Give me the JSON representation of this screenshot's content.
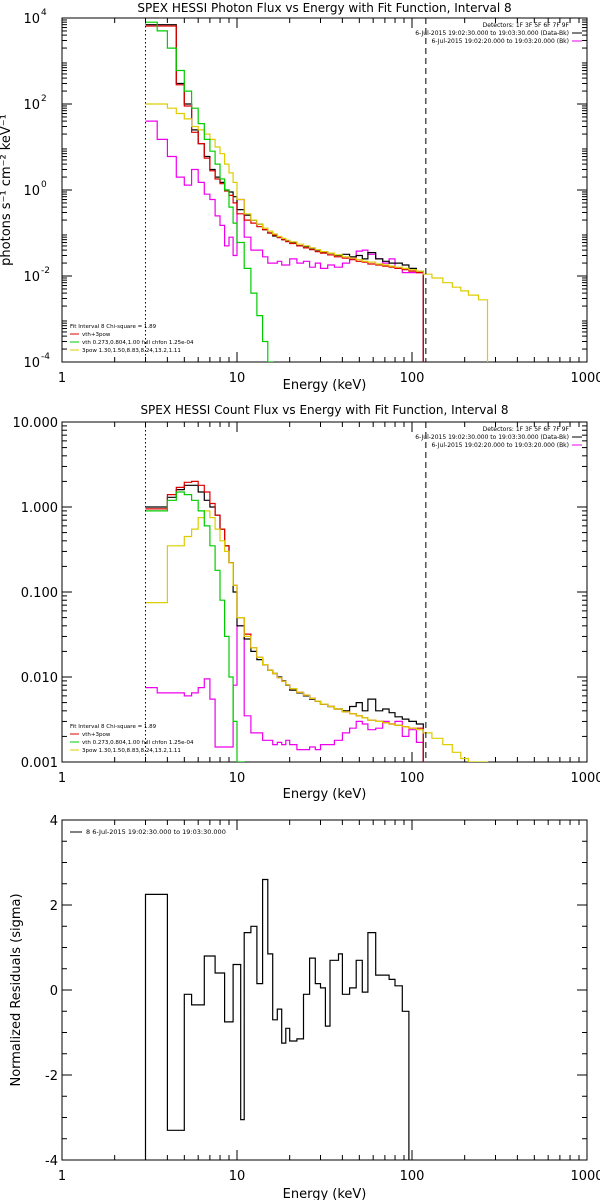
{
  "chart_data": [
    {
      "type": "line",
      "title": "SPEX HESSI Photon Flux vs Energy with Fit Function, Interval 8",
      "xlabel": "Energy (keV)",
      "ylabel": "photons s⁻¹ cm⁻² keV⁻¹",
      "xscale": "log",
      "yscale": "log",
      "xlim": [
        1,
        1000
      ],
      "ylim": [
        0.0001,
        10000
      ],
      "xticks": [
        {
          "v": 1,
          "label": "1"
        },
        {
          "v": 10,
          "label": "10"
        },
        {
          "v": 100,
          "label": "100"
        },
        {
          "v": 1000,
          "label": "1000"
        }
      ],
      "yticks": [
        {
          "v": 0.0001,
          "label": "10",
          "exp": "-4"
        },
        {
          "v": 0.01,
          "label": "10",
          "exp": "-2"
        },
        {
          "v": 1,
          "label": "10",
          "exp": "0"
        },
        {
          "v": 100,
          "label": "10",
          "exp": "2"
        },
        {
          "v": 10000,
          "label": "10",
          "exp": "4"
        }
      ],
      "grid": false,
      "legend_top": {
        "lines": [
          "Detectors: 1F 3F 5F 6F 7F 9F",
          "6-Jul-2015 19:02:30.000 to 19:03:30.000 (Data-Bk)",
          "6-Jul-2015 19:02:20.000 to 19:03:20.000 (Bk)"
        ],
        "colors": [
          "none",
          "#000000",
          "#ee00ee"
        ]
      },
      "legend_bottom": {
        "lines": [
          "Fit Interval 8   Chi-square = 1.89",
          "vth+3pow",
          "vth 0.273,0.804,1.00  full chfon 1.25e-04",
          "3pow 1.30,1.50,8.83,8.24,13.2,1.11"
        ],
        "colors": [
          "none",
          "#dd0000",
          "#00cc00",
          "#ddcc00"
        ]
      },
      "vlines": [
        {
          "x": 3.0,
          "style": "dotted",
          "color": "#000000"
        },
        {
          "x": 120,
          "style": "dashed",
          "color": "#000000"
        }
      ],
      "edges": [
        3.0,
        3.5,
        4.0,
        4.5,
        5.0,
        5.5,
        6.0,
        6.5,
        7.0,
        7.5,
        8.0,
        8.5,
        9.0,
        9.5,
        10.0,
        11.0,
        12.0,
        13.0,
        14.0,
        15.0,
        16.0,
        17.0,
        18.0,
        19.0,
        20.0,
        22.0,
        24.0,
        26.0,
        28.0,
        30.0,
        33.0,
        36.0,
        40.0,
        44.0,
        48.0,
        52.0,
        56.0,
        62.0,
        68.0,
        74.0,
        80.0,
        88.0,
        96.0,
        106.0,
        116.0,
        130.0,
        150.0,
        170.0,
        190.0,
        210.0,
        240.0,
        270.0
      ],
      "series": [
        {
          "color": "#ee00ee",
          "values": [
            40,
            15,
            6,
            2,
            1.3,
            3,
            1.5,
            0.8,
            0.6,
            0.25,
            0.15,
            0.05,
            0.08,
            0.03,
            0.6,
            0.08,
            0.04,
            0.04,
            0.028,
            0.02,
            0.02,
            0.022,
            0.018,
            0.018,
            0.025,
            0.02,
            0.022,
            0.016,
            0.02,
            0.015,
            0.018,
            0.016,
            0.02,
            0.025,
            0.038,
            0.04,
            0.032,
            0.025,
            0.02,
            0.025,
            0.015,
            0.012,
            0.012,
            0.012
          ]
        },
        {
          "color": "#000000",
          "values": [
            7000,
            7000,
            7000,
            300,
            100,
            25,
            12,
            6,
            3,
            2,
            1.5,
            1,
            0.9,
            0.7,
            0.35,
            0.26,
            0.2,
            0.16,
            0.12,
            0.1,
            0.085,
            0.08,
            0.07,
            0.065,
            0.06,
            0.05,
            0.048,
            0.042,
            0.04,
            0.036,
            0.034,
            0.03,
            0.032,
            0.028,
            0.03,
            0.025,
            0.035,
            0.025,
            0.022,
            0.02,
            0.02,
            0.018,
            0.015,
            0.013
          ]
        },
        {
          "color": "#dd0000",
          "values": [
            6500,
            6500,
            6500,
            280,
            90,
            22,
            12,
            5.5,
            2.8,
            1.8,
            1.4,
            0.95,
            0.75,
            0.5,
            0.28,
            0.2,
            0.17,
            0.14,
            0.12,
            0.1,
            0.09,
            0.078,
            0.07,
            0.063,
            0.057,
            0.05,
            0.045,
            0.041,
            0.037,
            0.034,
            0.031,
            0.028,
            0.026,
            0.024,
            0.022,
            0.021,
            0.019,
            0.018,
            0.017,
            0.016,
            0.015,
            0.014,
            0.013,
            0.012
          ]
        },
        {
          "color": "#ddcc00",
          "values": [
            100,
            100,
            80,
            60,
            45,
            30,
            25,
            20,
            15,
            10,
            7,
            4,
            2.5,
            1.5,
            0.6,
            0.28,
            0.2,
            0.16,
            0.13,
            0.11,
            0.095,
            0.083,
            0.075,
            0.068,
            0.062,
            0.055,
            0.05,
            0.045,
            0.041,
            0.037,
            0.034,
            0.031,
            0.028,
            0.026,
            0.024,
            0.022,
            0.021,
            0.019,
            0.018,
            0.017,
            0.016,
            0.015,
            0.014,
            0.013,
            0.011,
            0.009,
            0.007,
            0.0055,
            0.0045,
            0.0036,
            0.0028
          ]
        },
        {
          "color": "#00cc00",
          "values": [
            8000,
            5000,
            2000,
            600,
            200,
            80,
            35,
            15,
            8,
            4,
            1.8,
            1,
            0.4,
            0.17,
            0.06,
            0.015,
            0.004,
            0.0012,
            0.0003,
            8e-05
          ]
        }
      ]
    },
    {
      "type": "line",
      "title": "SPEX HESSI Count Flux vs Energy with Fit Function, Interval 8",
      "xlabel": "Energy (keV)",
      "ylabel": "",
      "xscale": "log",
      "yscale": "log",
      "xlim": [
        1,
        1000
      ],
      "ylim": [
        0.001,
        10
      ],
      "xticks": [
        {
          "v": 1,
          "label": "1"
        },
        {
          "v": 10,
          "label": "10"
        },
        {
          "v": 100,
          "label": "100"
        },
        {
          "v": 1000,
          "label": "1000"
        }
      ],
      "yticks": [
        {
          "v": 0.001,
          "label": "0.001"
        },
        {
          "v": 0.01,
          "label": "0.010"
        },
        {
          "v": 0.1,
          "label": "0.100"
        },
        {
          "v": 1,
          "label": "1.000"
        },
        {
          "v": 10,
          "label": "10.000"
        }
      ],
      "grid": false,
      "legend_top": {
        "lines": [
          "Detectors: 1F 3F 5F 6F 7F 9F",
          "6-Jul-2015 19:02:30.000 to 19:03:30.000 (Data-Bk)",
          "6-Jul-2015 19:02:20.000 to 19:03:20.000 (Bk)"
        ],
        "colors": [
          "none",
          "#000000",
          "#ee00ee"
        ]
      },
      "legend_bottom": {
        "lines": [
          "Fit Interval 8   Chi-square = 1.89",
          "vth+3pow",
          "vth 0.273,0.804,1.00  full chfon 1.25e-04",
          "3pow 1.30,1.50,8.83,8.24,13.2,1.11"
        ],
        "colors": [
          "none",
          "#dd0000",
          "#00cc00",
          "#ddcc00"
        ]
      },
      "vlines": [
        {
          "x": 3.0,
          "style": "dotted",
          "color": "#000000"
        },
        {
          "x": 120,
          "style": "dashed",
          "color": "#000000"
        }
      ],
      "edges": [
        3.0,
        3.5,
        4.0,
        4.5,
        5.0,
        5.5,
        6.0,
        6.5,
        7.0,
        7.5,
        8.0,
        8.5,
        9.0,
        9.5,
        10.0,
        11.0,
        12.0,
        13.0,
        14.0,
        15.0,
        16.0,
        17.0,
        18.0,
        19.0,
        20.0,
        22.0,
        24.0,
        26.0,
        28.0,
        30.0,
        33.0,
        36.0,
        40.0,
        44.0,
        48.0,
        52.0,
        56.0,
        62.0,
        68.0,
        74.0,
        80.0,
        88.0,
        96.0,
        106.0,
        116.0,
        130.0,
        150.0,
        170.0,
        190.0,
        210.0,
        240.0,
        270.0
      ],
      "series": [
        {
          "color": "#ee00ee",
          "values": [
            0.0075,
            0.0065,
            0.0065,
            0.0065,
            0.006,
            0.0065,
            0.0075,
            0.0095,
            0.0055,
            0.0015,
            0.0015,
            0.0015,
            0.0015,
            0.008,
            0.04,
            0.0035,
            0.0022,
            0.0022,
            0.0018,
            0.0018,
            0.0016,
            0.0017,
            0.0016,
            0.0018,
            0.0016,
            0.0014,
            0.0014,
            0.0015,
            0.0014,
            0.0016,
            0.0016,
            0.0018,
            0.0022,
            0.0025,
            0.003,
            0.0028,
            0.0024,
            0.0025,
            0.003,
            0.0028,
            0.003,
            0.002,
            0.0024,
            0.0017
          ]
        },
        {
          "color": "#000000",
          "values": [
            1.0,
            1.0,
            1.3,
            1.6,
            1.8,
            1.8,
            1.5,
            1.2,
            1.0,
            0.8,
            0.55,
            0.35,
            0.22,
            0.1,
            0.04,
            0.028,
            0.02,
            0.016,
            0.014,
            0.012,
            0.011,
            0.01,
            0.009,
            0.008,
            0.007,
            0.0065,
            0.006,
            0.0055,
            0.0052,
            0.0048,
            0.0045,
            0.0042,
            0.004,
            0.0045,
            0.005,
            0.004,
            0.0055,
            0.004,
            0.0042,
            0.0038,
            0.0034,
            0.0032,
            0.003,
            0.0028
          ]
        },
        {
          "color": "#dd0000",
          "values": [
            0.95,
            0.95,
            1.4,
            1.7,
            1.95,
            2.0,
            1.8,
            1.5,
            1.1,
            0.8,
            0.55,
            0.35,
            0.22,
            0.12,
            0.05,
            0.032,
            0.022,
            0.017,
            0.014,
            0.012,
            0.011,
            0.0098,
            0.0089,
            0.0081,
            0.0073,
            0.0066,
            0.0061,
            0.0056,
            0.0052,
            0.0048,
            0.0045,
            0.0042,
            0.0039,
            0.0037,
            0.0035,
            0.0033,
            0.0031,
            0.003,
            0.0029,
            0.0028,
            0.0027,
            0.0026,
            0.0025,
            0.0025
          ]
        },
        {
          "color": "#ddcc00",
          "values": [
            0.075,
            0.075,
            0.35,
            0.35,
            0.45,
            0.55,
            0.75,
            0.9,
            0.75,
            0.55,
            0.4,
            0.3,
            0.22,
            0.12,
            0.05,
            0.03,
            0.022,
            0.017,
            0.014,
            0.012,
            0.011,
            0.0098,
            0.0089,
            0.0081,
            0.0073,
            0.0066,
            0.0061,
            0.0056,
            0.0052,
            0.0048,
            0.0045,
            0.0042,
            0.0039,
            0.0037,
            0.0035,
            0.0033,
            0.0031,
            0.003,
            0.0029,
            0.0028,
            0.0027,
            0.0026,
            0.0025,
            0.0024,
            0.0022,
            0.0019,
            0.0016,
            0.0013,
            0.0011,
            0.0009,
            0.0007
          ]
        },
        {
          "color": "#00cc00",
          "values": [
            0.9,
            0.9,
            1.2,
            1.5,
            1.4,
            1.2,
            0.9,
            0.6,
            0.35,
            0.18,
            0.08,
            0.03,
            0.01,
            0.003,
            0.0008
          ]
        }
      ]
    },
    {
      "type": "line",
      "title": "",
      "xlabel": "Energy (keV)",
      "ylabel": "Normalized Residuals (sigma)",
      "xscale": "log",
      "yscale": "linear",
      "xlim": [
        1,
        1000
      ],
      "ylim": [
        -4,
        4
      ],
      "xticks": [
        {
          "v": 1,
          "label": "1"
        },
        {
          "v": 10,
          "label": "10"
        },
        {
          "v": 100,
          "label": "100"
        },
        {
          "v": 1000,
          "label": "1000"
        }
      ],
      "yticks": [
        {
          "v": -4,
          "label": "-4"
        },
        {
          "v": -2,
          "label": "-2"
        },
        {
          "v": 0,
          "label": "0"
        },
        {
          "v": 2,
          "label": "2"
        },
        {
          "v": 4,
          "label": "4"
        }
      ],
      "grid": false,
      "legend_top": {
        "lines": [
          "8  6-Jul-2015 19:02:30.000 to 19:03:30.000"
        ],
        "colors": [
          "#000000"
        ]
      },
      "vlines": [],
      "edges": [
        3.0,
        4.0,
        5.0,
        5.5,
        6.5,
        7.5,
        8.5,
        9.5,
        10.5,
        11.0,
        12.0,
        13.0,
        14.0,
        15.0,
        16.0,
        17.0,
        18.0,
        19.0,
        20.0,
        22.0,
        24.0,
        26.0,
        28.0,
        30.0,
        32.0,
        34.0,
        36.0,
        38.0,
        40.0,
        44.0,
        48.0,
        52.0,
        56.0,
        62.0,
        68.0,
        74.0,
        80.0,
        88.0,
        96.0,
        106.0,
        116.0
      ],
      "series": [
        {
          "color": "#000000",
          "drop_to_axis": true,
          "values": [
            2.25,
            -3.3,
            -0.1,
            -0.35,
            0.8,
            0.4,
            -0.75,
            0.6,
            -3.05,
            1.35,
            1.5,
            0.15,
            2.6,
            0.85,
            -0.7,
            -0.45,
            -1.25,
            -0.9,
            -1.2,
            -1.15,
            -0.1,
            0.75,
            0.15,
            0.05,
            -0.85,
            0.7,
            0.7,
            0.85,
            -0.1,
            0.05,
            0.7,
            -0.05,
            1.35,
            0.35,
            0.35,
            0.25,
            0.1,
            -0.5
          ]
        }
      ]
    }
  ]
}
